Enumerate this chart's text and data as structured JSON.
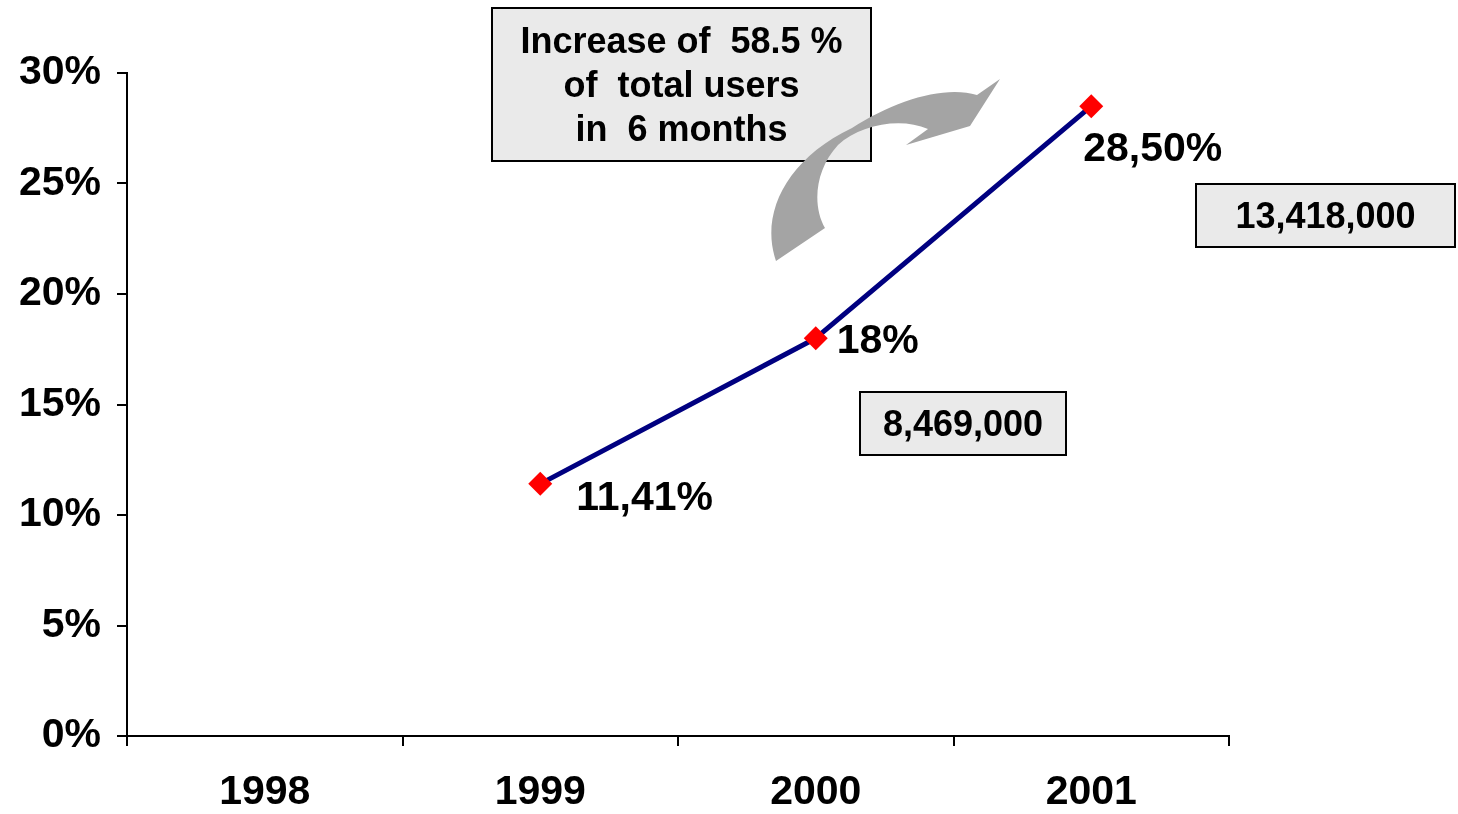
{
  "chart_data": {
    "type": "line",
    "categories": [
      "1998",
      "1999",
      "2000",
      "2001"
    ],
    "series": [
      {
        "color": "#000080",
        "colors": [
          "#ff0000",
          "#ff0000",
          "#ff0000",
          "#ff0000"
        ],
        "values": [
          null,
          11.41,
          18,
          28.5
        ],
        "value_labels": [
          null,
          "11,41%",
          "18%",
          "28,50%"
        ]
      }
    ],
    "ylim": [
      0,
      30
    ],
    "yticks": [
      {
        "value": 0,
        "label": "0%"
      },
      {
        "value": 5,
        "label": "5%"
      },
      {
        "value": 10,
        "label": "10%"
      },
      {
        "value": 15,
        "label": "15%"
      },
      {
        "value": 20,
        "label": "20%"
      },
      {
        "value": 25,
        "label": "25%"
      },
      {
        "value": 30,
        "label": "30%"
      }
    ],
    "marker": "diamond",
    "line_style": "solid",
    "annotations": [
      "Increase of  58.5 %\nof  total users\nin  6 months",
      "8,469,000",
      "13,418,000"
    ]
  }
}
